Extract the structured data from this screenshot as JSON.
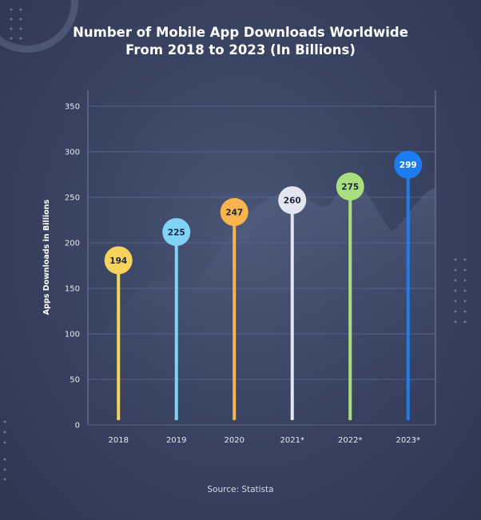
{
  "chart_data": {
    "type": "bar",
    "title_lines": [
      "Number of Mobile App Downloads Worldwide",
      "From 2018 to 2023 (In Billions)"
    ],
    "xlabel": "",
    "ylabel": "Apps Downloads in Billions",
    "categories": [
      "2018",
      "2019",
      "2020",
      "2021*",
      "2022*",
      "2023*"
    ],
    "values": [
      194,
      225,
      247,
      260,
      275,
      299
    ],
    "value_labels": [
      "194",
      "225",
      "247",
      "260",
      "275",
      "299"
    ],
    "ylim": [
      0,
      350
    ],
    "yticks": [
      0,
      50,
      100,
      150,
      200,
      250,
      300,
      350
    ],
    "ytick_labels": [
      "0",
      "50",
      "100",
      "150",
      "200",
      "250",
      "300",
      "350"
    ],
    "grid": true,
    "legend": "none",
    "colors": [
      "#f6d35b",
      "#7fd3f7",
      "#f8b54c",
      "#e3e6ee",
      "#a8e07f",
      "#1e7cf2"
    ],
    "label_text_colors": [
      "#1f2540",
      "#1f2540",
      "#1f2540",
      "#1f2540",
      "#1f2540",
      "#ffffff"
    ]
  },
  "source_text": "Source: Statista"
}
